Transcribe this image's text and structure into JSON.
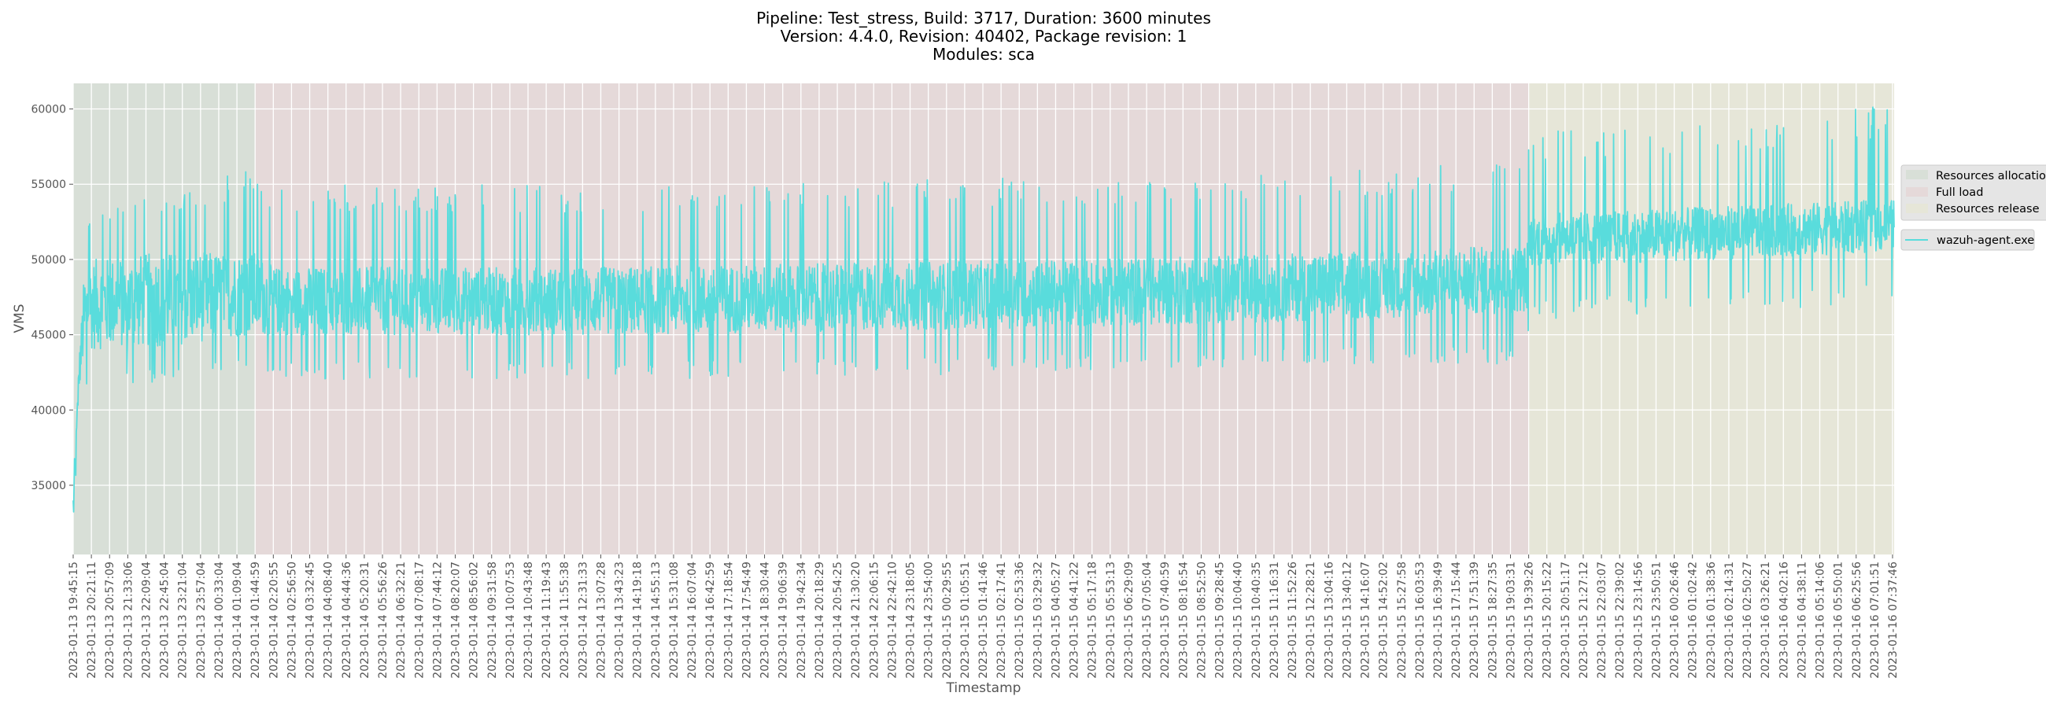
{
  "chart_data": {
    "type": "line",
    "title_lines": [
      "Pipeline: Test_stress, Build: 3717, Duration: 3600 minutes",
      "Version: 4.4.0, Revision: 40402, Package revision: 1",
      "Modules: sca"
    ],
    "xlabel": "Timestamp",
    "ylabel": "VMS",
    "ylim": [
      30400,
      61700
    ],
    "yticks": [
      35000,
      40000,
      45000,
      50000,
      55000,
      60000
    ],
    "grid": true,
    "legend_placement": "right-outside",
    "xtick_labels": [
      "2023-01-13 19:45:15",
      "2023-01-13 20:21:11",
      "2023-01-13 20:57:09",
      "2023-01-13 21:33:06",
      "2023-01-13 22:09:04",
      "2023-01-13 22:45:04",
      "2023-01-13 23:21:04",
      "2023-01-13 23:57:04",
      "2023-01-14 00:33:04",
      "2023-01-14 01:09:04",
      "2023-01-14 01:44:59",
      "2023-01-14 02:20:55",
      "2023-01-14 02:56:50",
      "2023-01-14 03:32:45",
      "2023-01-14 04:08:40",
      "2023-01-14 04:44:36",
      "2023-01-14 05:20:31",
      "2023-01-14 05:56:26",
      "2023-01-14 06:32:21",
      "2023-01-14 07:08:17",
      "2023-01-14 07:44:12",
      "2023-01-14 08:20:07",
      "2023-01-14 08:56:02",
      "2023-01-14 09:31:58",
      "2023-01-14 10:07:53",
      "2023-01-14 10:43:48",
      "2023-01-14 11:19:43",
      "2023-01-14 11:55:38",
      "2023-01-14 12:31:33",
      "2023-01-14 13:07:28",
      "2023-01-14 13:43:23",
      "2023-01-14 14:19:18",
      "2023-01-14 14:55:13",
      "2023-01-14 15:31:08",
      "2023-01-14 16:07:04",
      "2023-01-14 16:42:59",
      "2023-01-14 17:18:54",
      "2023-01-14 17:54:49",
      "2023-01-14 18:30:44",
      "2023-01-14 19:06:39",
      "2023-01-14 19:42:34",
      "2023-01-14 20:18:29",
      "2023-01-14 20:54:25",
      "2023-01-14 21:30:20",
      "2023-01-14 22:06:15",
      "2023-01-14 22:42:10",
      "2023-01-14 23:18:05",
      "2023-01-14 23:54:00",
      "2023-01-15 00:29:55",
      "2023-01-15 01:05:51",
      "2023-01-15 01:41:46",
      "2023-01-15 02:17:41",
      "2023-01-15 02:53:36",
      "2023-01-15 03:29:32",
      "2023-01-15 04:05:27",
      "2023-01-15 04:41:22",
      "2023-01-15 05:17:18",
      "2023-01-15 05:53:13",
      "2023-01-15 06:29:09",
      "2023-01-15 07:05:04",
      "2023-01-15 07:40:59",
      "2023-01-15 08:16:54",
      "2023-01-15 08:52:50",
      "2023-01-15 09:28:45",
      "2023-01-15 10:04:40",
      "2023-01-15 10:40:35",
      "2023-01-15 11:16:31",
      "2023-01-15 11:52:26",
      "2023-01-15 12:28:21",
      "2023-01-15 13:04:16",
      "2023-01-15 13:40:12",
      "2023-01-15 14:16:07",
      "2023-01-15 14:52:02",
      "2023-01-15 15:27:58",
      "2023-01-15 16:03:53",
      "2023-01-15 16:39:49",
      "2023-01-15 17:15:44",
      "2023-01-15 17:51:39",
      "2023-01-15 18:27:35",
      "2023-01-15 19:03:31",
      "2023-01-15 19:39:26",
      "2023-01-15 20:15:22",
      "2023-01-15 20:51:17",
      "2023-01-15 21:27:12",
      "2023-01-15 22:03:07",
      "2023-01-15 22:39:02",
      "2023-01-15 23:14:56",
      "2023-01-15 23:50:51",
      "2023-01-16 00:26:46",
      "2023-01-16 01:02:42",
      "2023-01-16 01:38:36",
      "2023-01-16 02:14:31",
      "2023-01-16 02:50:27",
      "2023-01-16 03:26:21",
      "2023-01-16 04:02:16",
      "2023-01-16 04:38:11",
      "2023-01-16 05:14:06",
      "2023-01-16 05:50:01",
      "2023-01-16 06:25:56",
      "2023-01-16 07:01:51",
      "2023-01-16 07:37:46"
    ],
    "phases": [
      {
        "name": "Resources allocation",
        "start_tick": 0,
        "end_tick": 10,
        "color": "#d8dfd7"
      },
      {
        "name": "Full load",
        "start_tick": 10,
        "end_tick": 80,
        "color": "#e5d9d9"
      },
      {
        "name": "Resources release",
        "start_tick": 80,
        "end_tick": 100.2,
        "color": "#e6e6d8"
      }
    ],
    "series": [
      {
        "name": "wazuh-agent.exe",
        "color": "#59dcdc",
        "envelope_note": "per tick index: [tick, spike_low, band_low, band_high, spike_high]",
        "envelope": [
          [
            0,
            31500,
            31500,
            35300,
            35300
          ],
          [
            0.15,
            35200,
            35300,
            38400,
            38400
          ],
          [
            0.3,
            40500,
            41000,
            43000,
            45000
          ],
          [
            0.6,
            41000,
            43500,
            49000,
            51500
          ],
          [
            1,
            41000,
            44000,
            50000,
            53000
          ],
          [
            5,
            42000,
            44200,
            50500,
            54500
          ],
          [
            10,
            43000,
            45000,
            50500,
            56000
          ],
          [
            11,
            42000,
            45000,
            49500,
            55000
          ],
          [
            30,
            42000,
            45000,
            49500,
            55000
          ],
          [
            55,
            42500,
            45500,
            50000,
            55500
          ],
          [
            70,
            43000,
            46000,
            50500,
            56000
          ],
          [
            79.9,
            43000,
            46500,
            51000,
            56500
          ],
          [
            80.1,
            46000,
            49500,
            53000,
            58500
          ],
          [
            90,
            46500,
            50000,
            53500,
            59000
          ],
          [
            100.2,
            47000,
            50500,
            54000,
            60300
          ]
        ]
      }
    ]
  }
}
